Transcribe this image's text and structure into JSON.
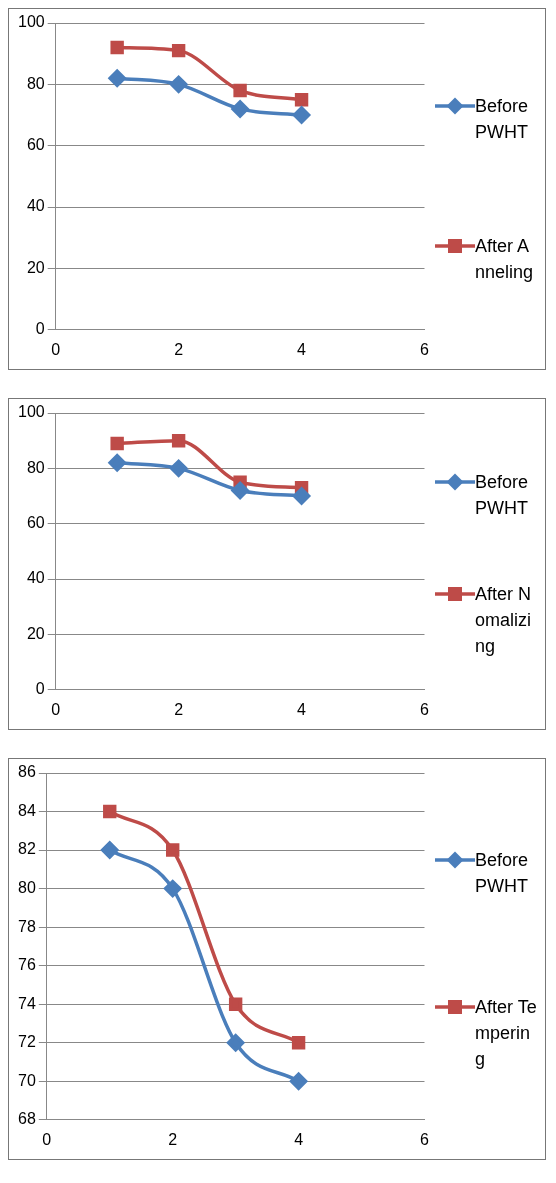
{
  "chart_data": [
    {
      "type": "line",
      "x": [
        1,
        2,
        3,
        4
      ],
      "xlim": [
        0,
        6
      ],
      "xticks": [
        0,
        2,
        4,
        6
      ],
      "ylim": [
        0,
        100
      ],
      "yticks": [
        0,
        20,
        40,
        60,
        80,
        100
      ],
      "grid": "y",
      "legend": "right",
      "series": [
        {
          "name": "Before PWHT",
          "color": "#4a7ebb",
          "marker": "diamond",
          "values": [
            82,
            80,
            72,
            70
          ]
        },
        {
          "name": "After Anneling",
          "color": "#be4b48",
          "marker": "square",
          "values": [
            92,
            91,
            78,
            75
          ]
        }
      ]
    },
    {
      "type": "line",
      "x": [
        1,
        2,
        3,
        4
      ],
      "xlim": [
        0,
        6
      ],
      "xticks": [
        0,
        2,
        4,
        6
      ],
      "ylim": [
        0,
        100
      ],
      "yticks": [
        0,
        20,
        40,
        60,
        80,
        100
      ],
      "grid": "y",
      "legend": "right",
      "series": [
        {
          "name": "Before PWHT",
          "color": "#4a7ebb",
          "marker": "diamond",
          "values": [
            82,
            80,
            72,
            70
          ]
        },
        {
          "name": "After Nomalizing",
          "color": "#be4b48",
          "marker": "square",
          "values": [
            89,
            90,
            75,
            73
          ]
        }
      ]
    },
    {
      "type": "line",
      "x": [
        1,
        2,
        3,
        4
      ],
      "xlim": [
        0,
        6
      ],
      "xticks": [
        0,
        2,
        4,
        6
      ],
      "ylim": [
        68,
        86
      ],
      "yticks": [
        68,
        70,
        72,
        74,
        76,
        78,
        80,
        82,
        84,
        86
      ],
      "grid": "y",
      "legend": "right",
      "series": [
        {
          "name": "Before PWHT",
          "color": "#4a7ebb",
          "marker": "diamond",
          "values": [
            82,
            80,
            72,
            70
          ]
        },
        {
          "name": "After Tempering",
          "color": "#be4b48",
          "marker": "square",
          "values": [
            84,
            82,
            74,
            72
          ]
        }
      ]
    }
  ]
}
